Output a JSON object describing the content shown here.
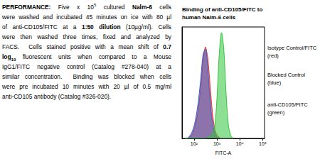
{
  "performance": {
    "lines": [
      [
        {
          "text": "PERFORMANCE:",
          "bold": true
        },
        {
          "text": " Five x 10"
        },
        {
          "text": "5",
          "sup": true
        },
        {
          "text": " cultured "
        },
        {
          "text": "Nalm-6",
          "bold": true
        },
        {
          "text": " cells"
        }
      ],
      [
        {
          "text": "were washed and incubated 45 minutes on ice with 80 µl"
        }
      ],
      [
        {
          "text": "of anti-CD105/FITC at a "
        },
        {
          "text": "1:50 dilution",
          "bold": true
        },
        {
          "text": " (10µg/ml). Cells"
        }
      ],
      [
        {
          "text": "were then washed three times, fixed and analyzed by"
        }
      ],
      [
        {
          "text": "FACS.  Cells stained positive with a mean shift of "
        },
        {
          "text": "0.7",
          "bold": true
        }
      ],
      [
        {
          "text": "log",
          "bold": true
        },
        {
          "text": "10",
          "bold": true,
          "sub": true
        },
        {
          "text": " fluorescent units when compared to a Mouse"
        }
      ],
      [
        {
          "text": "IgG1/FITC negative control (Catalog #278-040) at a"
        }
      ],
      [
        {
          "text": "similar concentration.  Binding was blocked when cells"
        }
      ],
      [
        {
          "text": "were pre incubated 10 minutes with 20 µl of 0.5 mg/ml"
        }
      ],
      [
        {
          "text": "anti-CD105 antibody (Catalog #326-020)."
        }
      ]
    ]
  },
  "chart_data": {
    "type": "area",
    "title": "Binding of anti-CD105/FITC to human Nalm-6 cells",
    "x_label": "FITC-A",
    "log": "x",
    "grid": false,
    "tick_labels": "x",
    "xlim": [
      30,
      120000
    ],
    "xticks": [
      {
        "value": 100,
        "label": "10²"
      },
      {
        "value": 1000,
        "label": "10³"
      },
      {
        "value": 10000,
        "label": "10⁴"
      },
      {
        "value": 100000,
        "label": "10⁵"
      }
    ],
    "ylim": [
      0,
      100
    ],
    "x": [
      40,
      50,
      63,
      79,
      100,
      126,
      158,
      200,
      251,
      316,
      398,
      501,
      631,
      794,
      1000,
      1259,
      1585,
      1995,
      2512,
      3162,
      3981,
      5012
    ],
    "series": [
      {
        "name": "Isotype Control/FITC",
        "note": "(red)",
        "color": "#e8302a",
        "values": [
          0,
          0,
          1,
          3,
          8,
          16,
          28,
          47,
          70,
          82,
          72,
          48,
          24,
          9,
          3,
          1,
          0,
          0,
          0,
          0,
          0,
          0
        ]
      },
      {
        "name": "Blocked Control",
        "note": "(blue)",
        "color": "#3a5fc8",
        "values": [
          0,
          0,
          2,
          5,
          11,
          21,
          35,
          55,
          76,
          80,
          62,
          35,
          15,
          5,
          1,
          0,
          0,
          0,
          0,
          0,
          0,
          0
        ]
      },
      {
        "name": "anti-CD105/FITC",
        "note": "(green)",
        "color": "#2fc43a",
        "values": [
          0,
          0,
          0,
          0,
          0,
          0,
          0,
          0,
          0,
          0,
          1,
          2,
          4,
          10,
          35,
          75,
          95,
          80,
          40,
          12,
          3,
          0
        ]
      }
    ]
  }
}
